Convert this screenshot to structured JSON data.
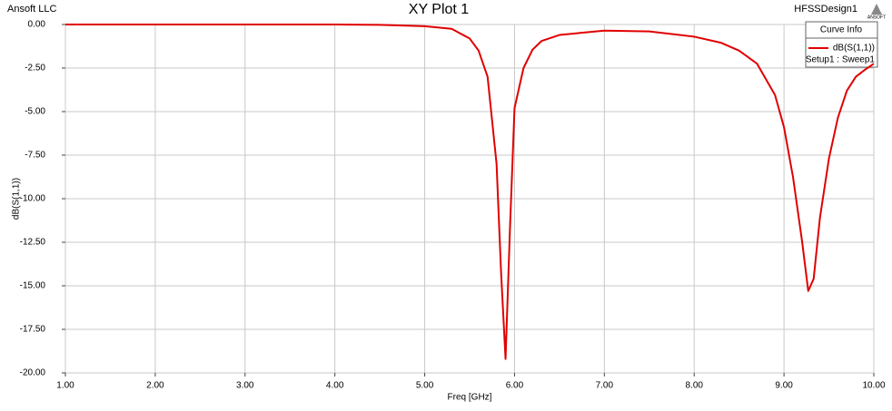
{
  "header": {
    "company": "Ansoft LLC",
    "design": "HFSSDesign1",
    "logo": "ANSOFT"
  },
  "chart_data": {
    "type": "line",
    "title": "XY Plot 1",
    "xlabel": "Freq [GHz]",
    "ylabel": "dB(S(1,1))",
    "x": [
      1.0,
      2.0,
      3.0,
      4.0,
      4.5,
      5.0,
      5.3,
      5.5,
      5.6,
      5.7,
      5.8,
      5.85,
      5.9,
      5.95,
      6.0,
      6.1,
      6.2,
      6.3,
      6.5,
      7.0,
      7.5,
      8.0,
      8.3,
      8.5,
      8.7,
      8.9,
      9.0,
      9.1,
      9.2,
      9.27,
      9.33,
      9.4,
      9.5,
      9.6,
      9.7,
      9.8,
      9.9,
      10.0
    ],
    "series": [
      {
        "name": "dB(S(1,1))",
        "color": "#e00000",
        "values": [
          0,
          0,
          0,
          0,
          -0.02,
          -0.1,
          -0.25,
          -0.8,
          -1.5,
          -3.0,
          -8.0,
          -14.2,
          -19.2,
          -11.6,
          -4.8,
          -2.5,
          -1.45,
          -0.95,
          -0.6,
          -0.35,
          -0.4,
          -0.7,
          -1.05,
          -1.5,
          -2.25,
          -4.05,
          -5.9,
          -8.75,
          -12.4,
          -15.3,
          -14.6,
          -11.1,
          -7.7,
          -5.35,
          -3.8,
          -3.0,
          -2.6,
          -2.25
        ]
      }
    ],
    "xlim": [
      1,
      10
    ],
    "ylim": [
      -20,
      0
    ],
    "xticks": [
      {
        "value": 1,
        "label": "1.00"
      },
      {
        "value": 2,
        "label": "2.00"
      },
      {
        "value": 3,
        "label": "3.00"
      },
      {
        "value": 4,
        "label": "4.00"
      },
      {
        "value": 5,
        "label": "5.00"
      },
      {
        "value": 6,
        "label": "6.00"
      },
      {
        "value": 7,
        "label": "7.00"
      },
      {
        "value": 8,
        "label": "8.00"
      },
      {
        "value": 9,
        "label": "9.00"
      },
      {
        "value": 10,
        "label": "10.00"
      }
    ],
    "yticks": [
      {
        "value": 0,
        "label": "0.00"
      },
      {
        "value": -2.5,
        "label": "-2.50"
      },
      {
        "value": -5,
        "label": "-5.00"
      },
      {
        "value": -7.5,
        "label": "-7.50"
      },
      {
        "value": -10,
        "label": "-10.00"
      },
      {
        "value": -12.5,
        "label": "-12.50"
      },
      {
        "value": -15,
        "label": "-15.00"
      },
      {
        "value": -17.5,
        "label": "-17.50"
      },
      {
        "value": -20,
        "label": "-20.00"
      }
    ],
    "grid": true,
    "legend": "top-right",
    "legend_title": "Curve Info",
    "legend_subtitle": "Setup1 : Sweep1"
  }
}
